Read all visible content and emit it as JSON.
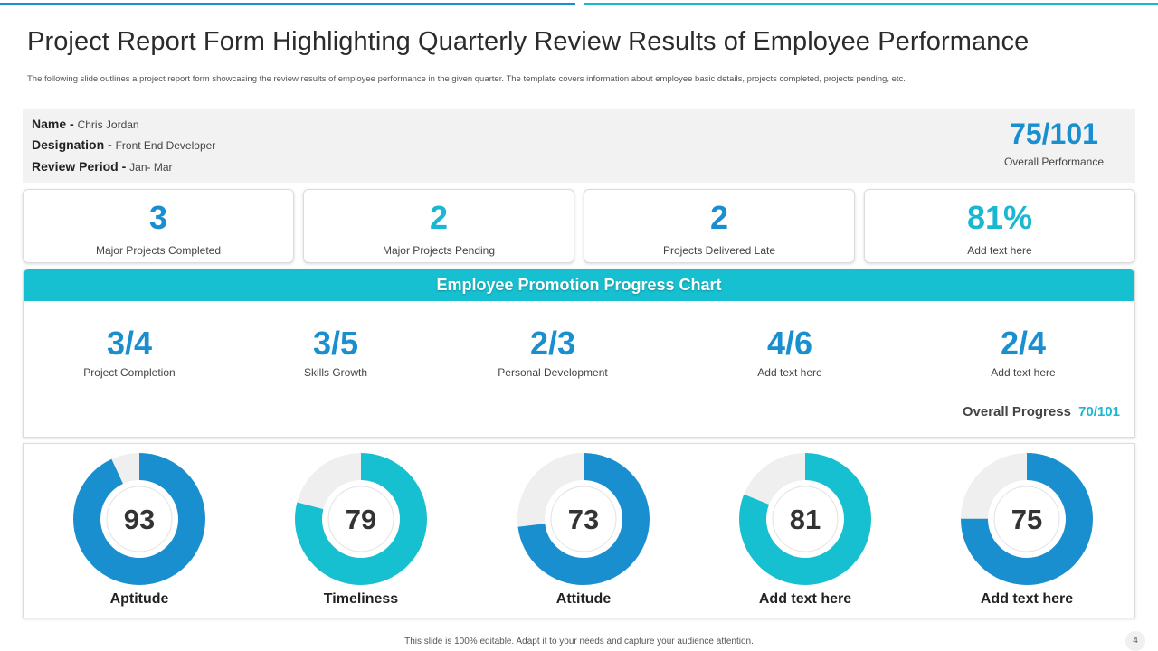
{
  "header": {
    "title": "Project Report Form Highlighting Quarterly Review Results of Employee Performance",
    "subtitle": "The following slide outlines a project report form showcasing the review results of employee performance in the given quarter. The template covers information about employee basic details, projects completed, projects pending, etc."
  },
  "employee": {
    "name_label": "Name -",
    "name_value": "Chris Jordan",
    "designation_label": "Designation -",
    "designation_value": "Front End Developer",
    "period_label": "Review Period -",
    "period_value": "Jan- Mar",
    "overall_score": "75/101",
    "overall_label": "Overall  Performance"
  },
  "stats": [
    {
      "value": "3",
      "label": "Major Projects Completed",
      "color": "#1a8fcf"
    },
    {
      "value": "2",
      "label": "Major Projects Pending",
      "color": "#1ab7d2"
    },
    {
      "value": "2",
      "label": "Projects Delivered  Late",
      "color": "#1a8fcf"
    },
    {
      "value": "81%",
      "label": "Add text here",
      "color": "#1ab7d2"
    }
  ],
  "progress_chart": {
    "title": "Employee Promotion Progress Chart",
    "items": [
      {
        "value": "3/4",
        "label": "Project Completion"
      },
      {
        "value": "3/5",
        "label": "Skills Growth"
      },
      {
        "value": "2/3",
        "label": "Personal Development"
      },
      {
        "value": "4/6",
        "label": "Add text here"
      },
      {
        "value": "2/4",
        "label": "Add text here"
      }
    ],
    "overall_label": "Overall Progress",
    "overall_value": "70/101"
  },
  "donuts": [
    {
      "score": "93",
      "fraction": 0.93,
      "label": "Aptitude",
      "color": "#1a8fcf"
    },
    {
      "score": "79",
      "fraction": 0.79,
      "label": "Timeliness",
      "color": "#17c0d0"
    },
    {
      "score": "73",
      "fraction": 0.73,
      "label": "Attitude",
      "color": "#1a8fcf"
    },
    {
      "score": "81",
      "fraction": 0.81,
      "label": "Add text here",
      "color": "#17c0d0"
    },
    {
      "score": "75",
      "fraction": 0.75,
      "label": "Add text here",
      "color": "#1a8fcf"
    }
  ],
  "footer": {
    "text": "This slide is 100% editable.  Adapt it to your  needs and capture your audience attention.",
    "page": "4"
  }
}
